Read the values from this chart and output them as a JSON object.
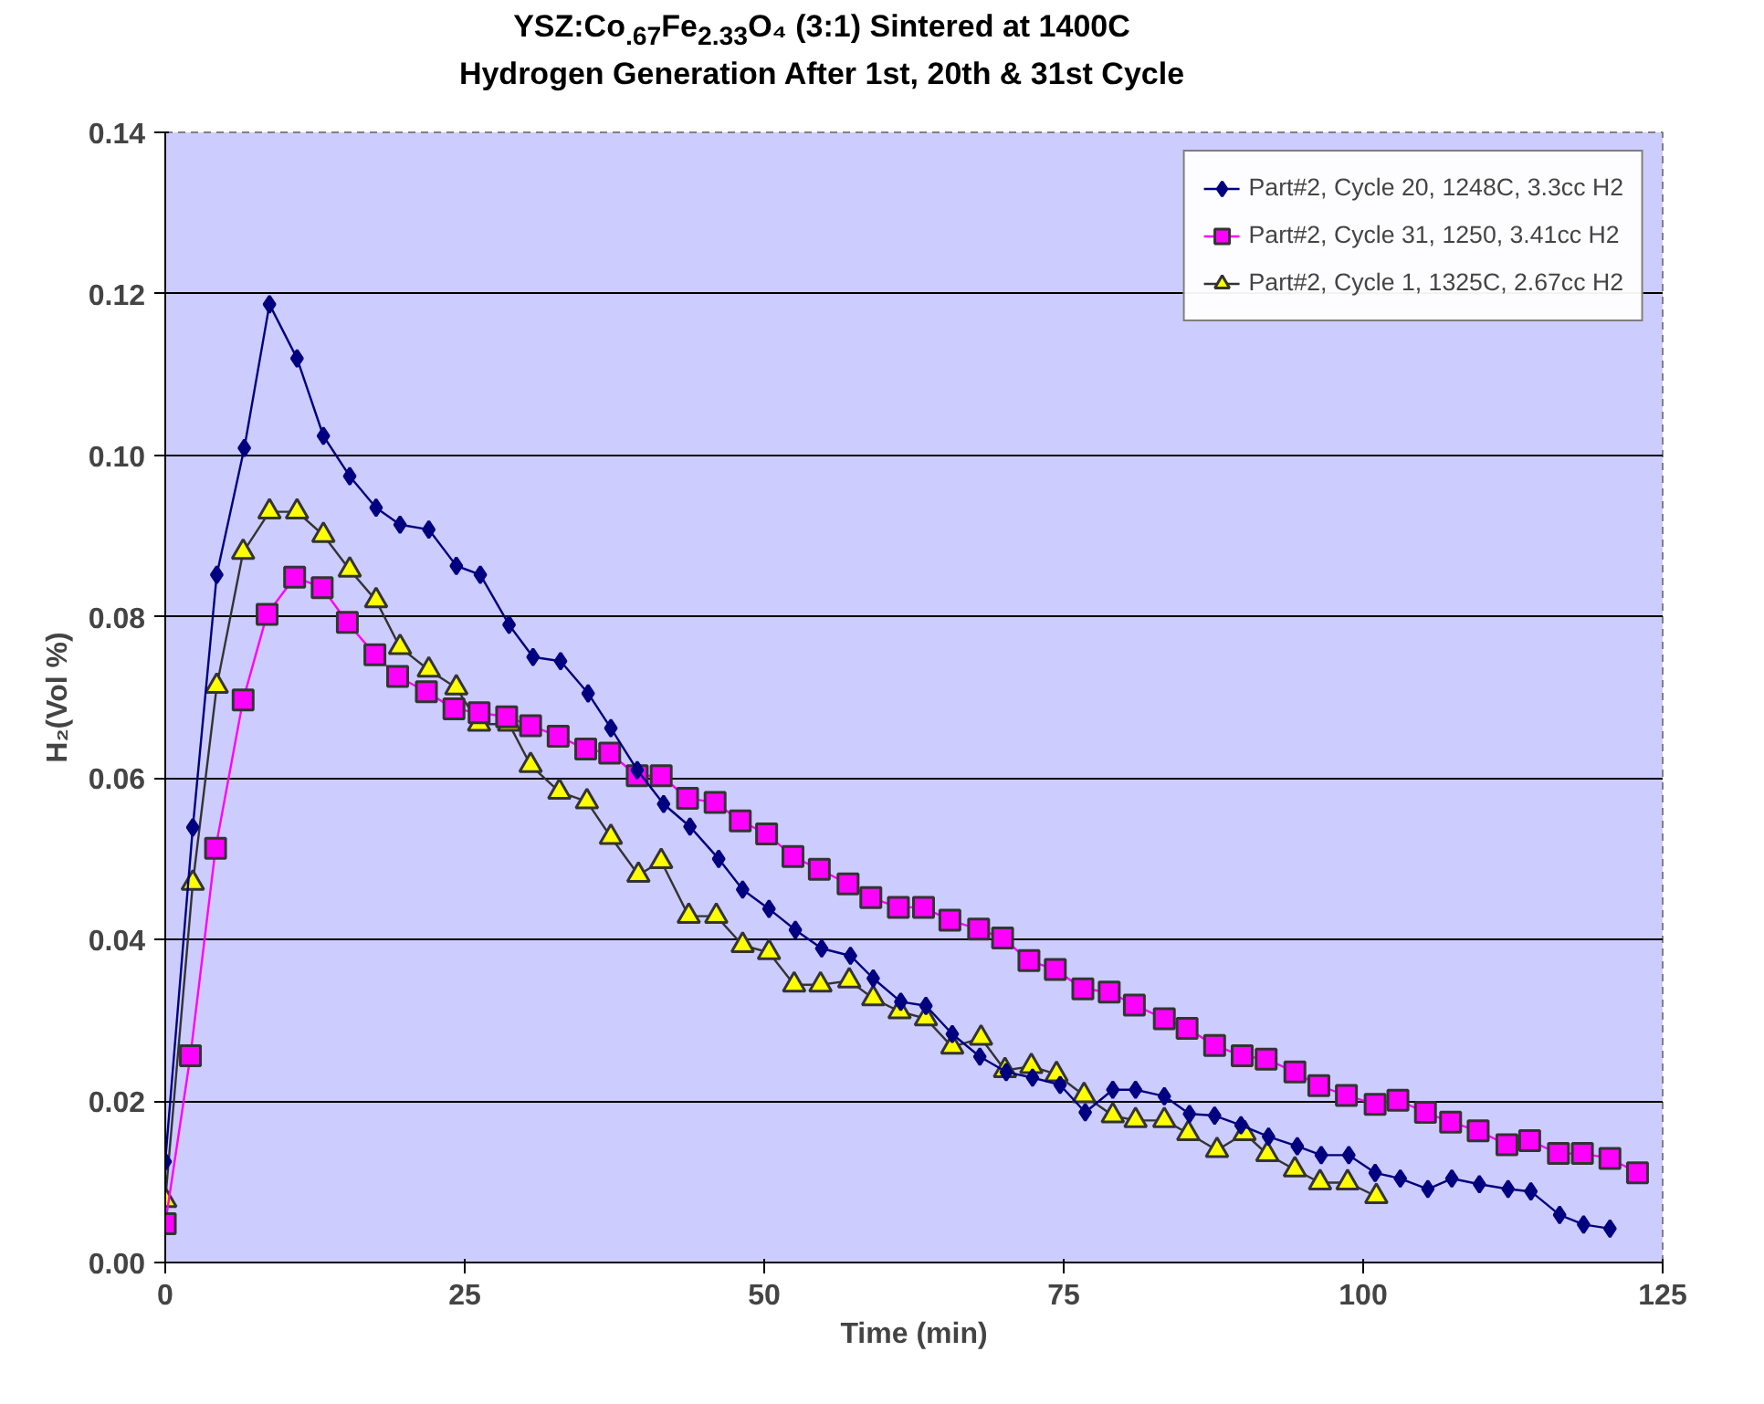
{
  "chart_data": {
    "type": "line",
    "title": "YSZ:Co$_{.67}$Fe$_{2.33}$O₄ (3:1) Sintered at 1400C",
    "subtitle": "Hydrogen Generation After 1st, 20th & 31st Cycle",
    "xlabel": "Time (min)",
    "ylabel": "H₂(Vol %)",
    "xlim": [
      0,
      125
    ],
    "xticks": [
      0,
      25,
      50,
      75,
      100,
      125
    ],
    "ylim": [
      0,
      0.14
    ],
    "yticks": [
      {
        "value": 0,
        "label": "0.00"
      },
      {
        "value": 0.02,
        "label": "0.02"
      },
      {
        "value": 0.04,
        "label": "0.04"
      },
      {
        "value": 0.06,
        "label": "0.06"
      },
      {
        "value": 0.08,
        "label": "0.08"
      },
      {
        "value": 0.1,
        "label": "0.10"
      },
      {
        "value": 0.12,
        "label": "0.12"
      },
      {
        "value": 0.14,
        "label": "0.14"
      }
    ],
    "grid": "y",
    "legend": "top right",
    "line_style": "solid",
    "series": [
      {
        "name": "Part#2, Cycle 20, 1248C, 3.3cc H2",
        "color": "#000080",
        "marker": "diamond",
        "x": [
          0,
          2.3,
          4.3,
          6.6,
          8.7,
          11.0,
          13.2,
          15.4,
          17.6,
          19.6,
          22.0,
          24.3,
          26.3,
          28.7,
          30.7,
          33.0,
          35.3,
          37.2,
          39.4,
          41.6,
          43.8,
          46.2,
          48.2,
          50.4,
          52.6,
          54.8,
          57.2,
          59.1,
          61.4,
          63.5,
          65.7,
          68.0,
          70.2,
          72.4,
          74.7,
          76.8,
          79.1,
          81.0,
          83.4,
          85.5,
          87.6,
          89.8,
          92.1,
          94.5,
          96.5,
          98.8,
          101.0,
          103.1,
          105.4,
          107.4,
          109.7,
          112.1,
          114.0,
          116.4,
          118.4,
          120.6
        ],
        "values": [
          0.0125,
          0.0539,
          0.0852,
          0.1009,
          0.1187,
          0.112,
          0.1024,
          0.0974,
          0.0935,
          0.0914,
          0.0908,
          0.0863,
          0.0852,
          0.079,
          0.075,
          0.0745,
          0.0705,
          0.0662,
          0.061,
          0.0568,
          0.054,
          0.05,
          0.0462,
          0.0438,
          0.0412,
          0.0389,
          0.038,
          0.0352,
          0.0323,
          0.0318,
          0.0283,
          0.0255,
          0.0236,
          0.0229,
          0.022,
          0.0186,
          0.0214,
          0.0214,
          0.0206,
          0.0184,
          0.0182,
          0.017,
          0.0156,
          0.0144,
          0.0133,
          0.0133,
          0.0111,
          0.0104,
          0.0091,
          0.0104,
          0.0097,
          0.0091,
          0.0088,
          0.0059,
          0.0047,
          0.0042
        ]
      },
      {
        "name": "Part#2, Cycle 31, 1250, 3.41cc H2",
        "color": "#ff00ff",
        "marker": "square",
        "x": [
          0,
          2.1,
          4.2,
          6.5,
          8.5,
          10.8,
          13.1,
          15.2,
          17.5,
          19.4,
          21.8,
          24.1,
          26.2,
          28.5,
          30.5,
          32.8,
          35.1,
          37.1,
          39.4,
          41.4,
          43.6,
          45.9,
          48.0,
          50.2,
          52.4,
          54.6,
          57.0,
          58.9,
          61.2,
          63.3,
          65.5,
          67.9,
          69.9,
          72.1,
          74.3,
          76.6,
          78.8,
          80.9,
          83.4,
          85.3,
          87.6,
          89.9,
          91.9,
          94.3,
          96.3,
          98.6,
          101.0,
          102.9,
          105.2,
          107.3,
          109.6,
          112.0,
          113.9,
          116.3,
          118.3,
          120.6,
          122.9
        ],
        "values": [
          0.0048,
          0.0256,
          0.0513,
          0.0697,
          0.0803,
          0.0849,
          0.0836,
          0.0793,
          0.0753,
          0.0726,
          0.0707,
          0.0686,
          0.0681,
          0.0676,
          0.0665,
          0.0652,
          0.0636,
          0.0631,
          0.0603,
          0.0603,
          0.0575,
          0.057,
          0.0547,
          0.0531,
          0.0503,
          0.0487,
          0.0469,
          0.0452,
          0.044,
          0.044,
          0.0424,
          0.0413,
          0.0402,
          0.0374,
          0.0363,
          0.0339,
          0.0335,
          0.0319,
          0.0302,
          0.029,
          0.0269,
          0.0256,
          0.0252,
          0.0236,
          0.0219,
          0.0207,
          0.0196,
          0.0201,
          0.0186,
          0.0174,
          0.0163,
          0.0146,
          0.0151,
          0.0135,
          0.0135,
          0.0129,
          0.0111
        ]
      },
      {
        "name": "Part#2, Cycle 1, 1325C, 2.67cc H2",
        "color": "#ffff00",
        "marker": "triangle",
        "x": [
          0,
          2.3,
          4.3,
          6.5,
          8.7,
          11.0,
          13.2,
          15.4,
          17.6,
          19.6,
          22.0,
          24.3,
          26.2,
          28.7,
          30.5,
          32.9,
          35.2,
          37.2,
          39.5,
          41.4,
          43.7,
          46.0,
          48.2,
          50.4,
          52.5,
          54.7,
          57.1,
          59.1,
          61.3,
          63.5,
          65.7,
          68.1,
          70.1,
          72.3,
          74.4,
          76.7,
          79.1,
          81.0,
          83.4,
          85.4,
          87.8,
          90.1,
          92.0,
          94.3,
          96.4,
          98.7,
          101.1
        ],
        "values": [
          0.0077,
          0.047,
          0.0714,
          0.088,
          0.093,
          0.093,
          0.0901,
          0.0858,
          0.082,
          0.0762,
          0.0734,
          0.0712,
          0.0667,
          0.0667,
          0.0616,
          0.0583,
          0.0571,
          0.0527,
          0.048,
          0.0497,
          0.0429,
          0.0429,
          0.0393,
          0.0384,
          0.0344,
          0.0344,
          0.0349,
          0.0327,
          0.0311,
          0.0302,
          0.0267,
          0.0278,
          0.0238,
          0.0243,
          0.0233,
          0.0207,
          0.0182,
          0.0176,
          0.0176,
          0.016,
          0.0139,
          0.016,
          0.0134,
          0.0115,
          0.0099,
          0.0099,
          0.0082
        ]
      }
    ]
  }
}
